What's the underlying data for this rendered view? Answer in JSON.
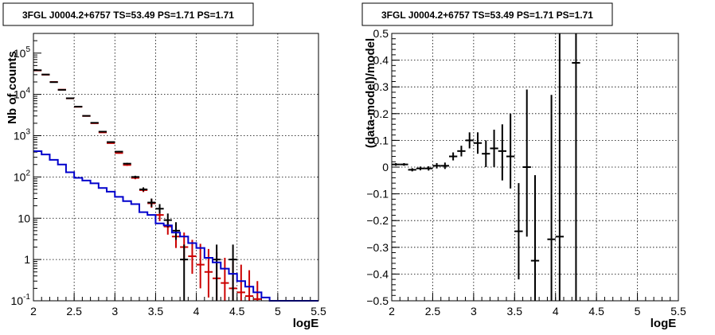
{
  "chart_data": [
    {
      "type": "line",
      "title": "3FGL J0004.2+6757 TS=53.49 PS=1.71 PS=1.71",
      "xlabel": "logE",
      "ylabel": "Nb of counts",
      "xlim": [
        2,
        5.5
      ],
      "ylim": [
        0.1,
        300000
      ],
      "y_scale": "log",
      "grid": true,
      "x_ticks": [
        "2",
        "2.5",
        "3",
        "3.5",
        "4",
        "4.5",
        "5",
        "5.5"
      ],
      "y_ticks": [
        {
          "value": 0.1,
          "base": "10",
          "exp": "-1"
        },
        {
          "value": 1,
          "base": "1",
          "exp": ""
        },
        {
          "value": 10,
          "base": "10",
          "exp": ""
        },
        {
          "value": 100,
          "base": "10",
          "exp": "2"
        },
        {
          "value": 1000,
          "base": "10",
          "exp": "3"
        },
        {
          "value": 10000,
          "base": "10",
          "exp": "4"
        },
        {
          "value": 100000,
          "base": "10",
          "exp": "5"
        }
      ],
      "series": [
        {
          "color": "#cc0000",
          "style": "errorbar",
          "bin_halfwidth": 0.05,
          "points": [
            {
              "x": 2.05,
              "y": 38000,
              "lo": 37600,
              "hi": 38400
            },
            {
              "x": 2.15,
              "y": 30000,
              "lo": 29650,
              "hi": 30350
            },
            {
              "x": 2.25,
              "y": 20000,
              "lo": 19700,
              "hi": 20300
            },
            {
              "x": 2.35,
              "y": 13000,
              "lo": 12800,
              "hi": 13200
            },
            {
              "x": 2.45,
              "y": 8000,
              "lo": 7900,
              "hi": 8100
            },
            {
              "x": 2.55,
              "y": 5000,
              "lo": 4930,
              "hi": 5070
            },
            {
              "x": 2.65,
              "y": 3000,
              "lo": 2950,
              "hi": 3050
            },
            {
              "x": 2.75,
              "y": 2000,
              "lo": 1960,
              "hi": 2040
            },
            {
              "x": 2.85,
              "y": 1200,
              "lo": 1170,
              "hi": 1230
            },
            {
              "x": 2.95,
              "y": 660,
              "lo": 640,
              "hi": 680
            },
            {
              "x": 3.05,
              "y": 380,
              "lo": 365,
              "hi": 395
            },
            {
              "x": 3.15,
              "y": 195,
              "lo": 185,
              "hi": 205
            },
            {
              "x": 3.25,
              "y": 95,
              "lo": 88,
              "hi": 102
            },
            {
              "x": 3.35,
              "y": 48,
              "lo": 43,
              "hi": 54
            },
            {
              "x": 3.45,
              "y": 23,
              "lo": 18,
              "hi": 29
            },
            {
              "x": 3.55,
              "y": 12,
              "lo": 8.5,
              "hi": 17
            },
            {
              "x": 3.65,
              "y": 6.3,
              "lo": 4,
              "hi": 9.5
            },
            {
              "x": 3.75,
              "y": 3.6,
              "lo": 1.9,
              "hi": 6.5
            },
            {
              "x": 3.85,
              "y": 2,
              "lo": 0.9,
              "hi": 4.5
            },
            {
              "x": 3.95,
              "y": 1.2,
              "lo": 0.45,
              "hi": 3
            },
            {
              "x": 4.05,
              "y": 0.75,
              "lo": 0.2,
              "hi": 2.4
            },
            {
              "x": 4.15,
              "y": 0.5,
              "lo": 0.12,
              "hi": 1.8
            },
            {
              "x": 4.25,
              "y": 0.35,
              "lo": 0.1,
              "hi": 1.5
            },
            {
              "x": 4.35,
              "y": 0.27,
              "lo": 0.1,
              "hi": 1.1
            },
            {
              "x": 4.45,
              "y": 0.2,
              "lo": 0.1,
              "hi": 0.9
            },
            {
              "x": 4.55,
              "y": 0.16,
              "lo": 0.1,
              "hi": 0.75
            },
            {
              "x": 4.65,
              "y": 0.13,
              "lo": 0.1,
              "hi": 0.55
            },
            {
              "x": 4.75,
              "y": 0.11,
              "lo": 0.1,
              "hi": 0.3
            }
          ]
        },
        {
          "color": "#000000",
          "style": "errorbar",
          "bin_halfwidth": 0.05,
          "points": [
            {
              "x": 2.05,
              "y": 38500,
              "lo": 38100,
              "hi": 38900
            },
            {
              "x": 2.15,
              "y": 30300,
              "lo": 29950,
              "hi": 30650
            },
            {
              "x": 2.25,
              "y": 19800,
              "lo": 19500,
              "hi": 20100
            },
            {
              "x": 2.35,
              "y": 12900,
              "lo": 12700,
              "hi": 13100
            },
            {
              "x": 2.45,
              "y": 8050,
              "lo": 7950,
              "hi": 8150
            },
            {
              "x": 2.55,
              "y": 5050,
              "lo": 4980,
              "hi": 5120
            },
            {
              "x": 2.65,
              "y": 3020,
              "lo": 2970,
              "hi": 3070
            },
            {
              "x": 2.75,
              "y": 2050,
              "lo": 2010,
              "hi": 2090
            },
            {
              "x": 2.85,
              "y": 1250,
              "lo": 1220,
              "hi": 1280
            },
            {
              "x": 2.95,
              "y": 700,
              "lo": 680,
              "hi": 720
            },
            {
              "x": 3.05,
              "y": 410,
              "lo": 395,
              "hi": 425
            },
            {
              "x": 3.15,
              "y": 210,
              "lo": 200,
              "hi": 220
            },
            {
              "x": 3.25,
              "y": 100,
              "lo": 93,
              "hi": 107
            },
            {
              "x": 3.35,
              "y": 50,
              "lo": 45,
              "hi": 56
            },
            {
              "x": 3.45,
              "y": 24,
              "lo": 19,
              "hi": 30
            },
            {
              "x": 3.55,
              "y": 17,
              "lo": 13,
              "hi": 22
            },
            {
              "x": 3.65,
              "y": 9,
              "lo": 6,
              "hi": 13
            },
            {
              "x": 3.75,
              "y": 5,
              "lo": 3,
              "hi": 8
            },
            {
              "x": 3.85,
              "y": 1,
              "lo": 0.1,
              "hi": 2.3
            },
            {
              "x": 4.25,
              "y": 1,
              "lo": 0.1,
              "hi": 2.3
            },
            {
              "x": 4.45,
              "y": 1,
              "lo": 0.1,
              "hi": 2.3
            }
          ]
        },
        {
          "color": "#0000cc",
          "style": "step",
          "bin_edges": [
            2.0,
            2.1,
            2.2,
            2.3,
            2.4,
            2.5,
            2.6,
            2.7,
            2.8,
            2.9,
            3.0,
            3.1,
            3.2,
            3.3,
            3.4,
            3.5,
            3.6,
            3.7,
            3.8,
            3.9,
            4.0,
            4.1,
            4.2,
            4.3,
            4.4,
            4.5,
            4.6,
            4.7,
            4.8,
            4.9,
            5.0,
            5.5
          ],
          "values": [
            420,
            350,
            260,
            200,
            130,
            95,
            82,
            70,
            54,
            44,
            33,
            26,
            22,
            14,
            12,
            7.5,
            6.7,
            4.5,
            3.6,
            2.5,
            1.9,
            1.1,
            0.85,
            0.6,
            0.45,
            0.3,
            0.22,
            0.16,
            0.12,
            0.1,
            0.1
          ]
        }
      ]
    },
    {
      "type": "scatter",
      "title": "3FGL J0004.2+6757 TS=53.49 PS=1.71 PS=1.71",
      "xlabel": "logE",
      "ylabel": "(data-model)/model",
      "xlim": [
        2,
        5.5
      ],
      "ylim": [
        -0.5,
        0.5
      ],
      "grid": true,
      "x_ticks": [
        "2",
        "2.5",
        "3",
        "3.5",
        "4",
        "4.5",
        "5",
        "5.5"
      ],
      "y_ticks": [
        "−0.5",
        "−0.4",
        "−0.3",
        "−0.2",
        "−0.1",
        "0",
        "0.1",
        "0.2",
        "0.3",
        "0.4",
        "0.5"
      ],
      "series": [
        {
          "color": "#000000",
          "style": "errorbar",
          "bin_halfwidth": 0.05,
          "points": [
            {
              "x": 2.05,
              "y": 0.01,
              "lo": 0.005,
              "hi": 0.015
            },
            {
              "x": 2.15,
              "y": 0.01,
              "lo": 0.005,
              "hi": 0.015
            },
            {
              "x": 2.25,
              "y": -0.01,
              "lo": -0.016,
              "hi": -0.004
            },
            {
              "x": 2.35,
              "y": -0.005,
              "lo": -0.012,
              "hi": 0.002
            },
            {
              "x": 2.45,
              "y": -0.005,
              "lo": -0.013,
              "hi": 0.003
            },
            {
              "x": 2.55,
              "y": 0.005,
              "lo": -0.005,
              "hi": 0.015
            },
            {
              "x": 2.65,
              "y": 0.005,
              "lo": -0.007,
              "hi": 0.017
            },
            {
              "x": 2.75,
              "y": 0.04,
              "lo": 0.025,
              "hi": 0.055
            },
            {
              "x": 2.85,
              "y": 0.06,
              "lo": 0.04,
              "hi": 0.08
            },
            {
              "x": 2.95,
              "y": 0.1,
              "lo": 0.07,
              "hi": 0.13
            },
            {
              "x": 3.05,
              "y": 0.09,
              "lo": 0.05,
              "hi": 0.13
            },
            {
              "x": 3.15,
              "y": 0.05,
              "lo": 0.0,
              "hi": 0.1
            },
            {
              "x": 3.25,
              "y": 0.07,
              "lo": 0.0,
              "hi": 0.14
            },
            {
              "x": 3.35,
              "y": 0.06,
              "lo": -0.05,
              "hi": 0.16
            },
            {
              "x": 3.45,
              "y": 0.04,
              "lo": -0.08,
              "hi": 0.2
            },
            {
              "x": 3.55,
              "y": -0.24,
              "lo": -0.42,
              "hi": -0.06
            },
            {
              "x": 3.65,
              "y": 0.0,
              "lo": -0.26,
              "hi": 0.29
            },
            {
              "x": 3.75,
              "y": -0.35,
              "lo": -0.5,
              "hi": -0.03
            },
            {
              "x": 3.95,
              "y": -0.27,
              "lo": -0.5,
              "hi": 0.27
            },
            {
              "x": 4.05,
              "y": -0.26,
              "lo": -0.5,
              "hi": 0.5
            },
            {
              "x": 4.25,
              "y": 0.39,
              "lo": -0.5,
              "hi": 0.5
            }
          ]
        }
      ]
    }
  ]
}
